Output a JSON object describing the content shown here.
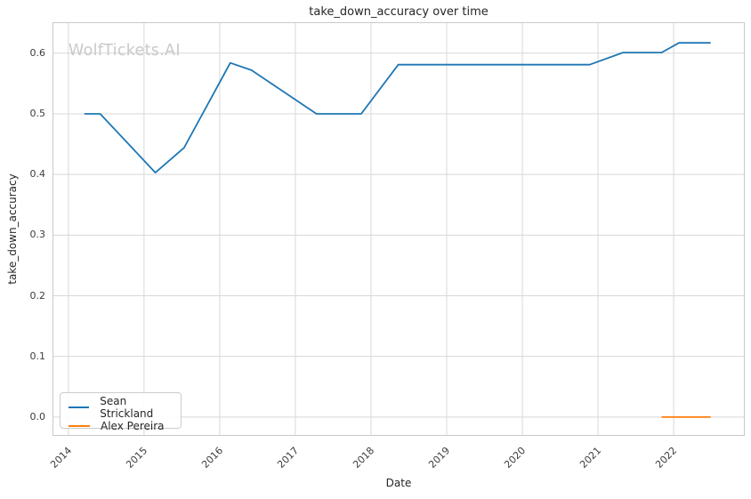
{
  "title": "take_down_accuracy over time",
  "watermark": "WolfTickets.AI",
  "axes": {
    "x_label": "Date",
    "y_label": "take_down_accuracy"
  },
  "legend": {
    "position": "lower left",
    "entries": [
      {
        "label": "Sean Strickland",
        "color": "#1f77b4"
      },
      {
        "label": "Alex Pereira",
        "color": "#ff7f0e"
      }
    ]
  },
  "style": {
    "grid_color": "#d8d8d8",
    "spine_color": "#c9c9c9",
    "text_color": "#262626",
    "watermark_color": "#c9c9c9",
    "line_width": 1.8
  },
  "chart_data": {
    "type": "line",
    "title": "take_down_accuracy over time",
    "xlabel": "Date",
    "ylabel": "take_down_accuracy",
    "grid": true,
    "legend_position": "lower left",
    "xlim": [
      2013.79,
      2022.94
    ],
    "ylim": [
      -0.031,
      0.651
    ],
    "x_ticks": [
      2014,
      2015,
      2016,
      2017,
      2018,
      2019,
      2020,
      2021,
      2022
    ],
    "x_tick_labels": [
      "2014",
      "2015",
      "2016",
      "2017",
      "2018",
      "2019",
      "2020",
      "2021",
      "2022"
    ],
    "y_ticks": [
      0.0,
      0.1,
      0.2,
      0.3,
      0.4,
      0.5,
      0.6
    ],
    "y_tick_labels": [
      "0.0",
      "0.1",
      "0.2",
      "0.3",
      "0.4",
      "0.5",
      "0.6"
    ],
    "series": [
      {
        "name": "Sean Strickland",
        "color": "#1f77b4",
        "points": [
          [
            2014.21,
            0.5
          ],
          [
            2014.42,
            0.5
          ],
          [
            2015.15,
            0.403
          ],
          [
            2015.53,
            0.444
          ],
          [
            2016.14,
            0.584
          ],
          [
            2016.42,
            0.572
          ],
          [
            2017.28,
            0.5
          ],
          [
            2017.87,
            0.5
          ],
          [
            2018.36,
            0.581
          ],
          [
            2020.89,
            0.581
          ],
          [
            2021.33,
            0.601
          ],
          [
            2021.84,
            0.601
          ],
          [
            2022.07,
            0.617
          ],
          [
            2022.49,
            0.617
          ]
        ]
      },
      {
        "name": "Alex Pereira",
        "color": "#ff7f0e",
        "points": [
          [
            2021.84,
            0.0
          ],
          [
            2022.49,
            0.0
          ]
        ]
      }
    ]
  }
}
